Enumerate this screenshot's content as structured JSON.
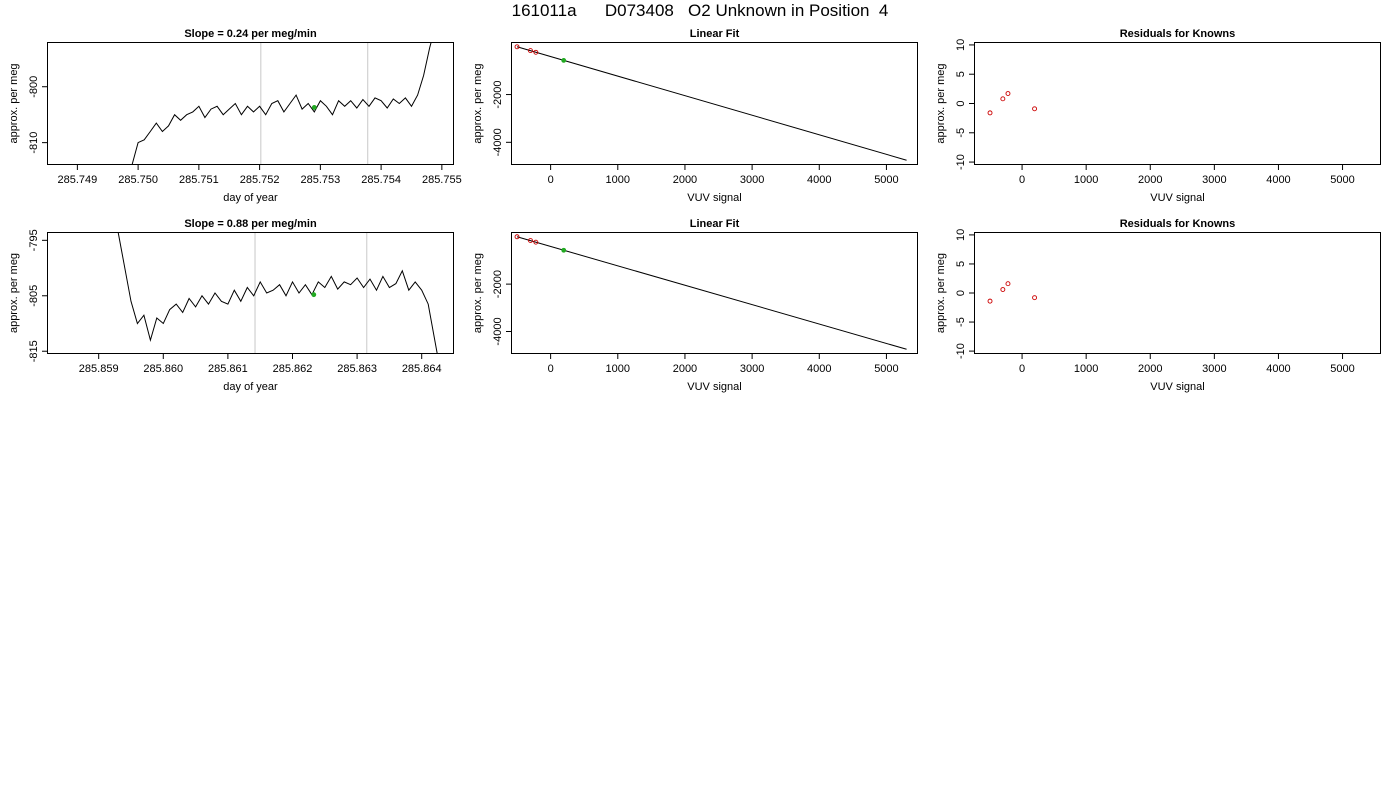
{
  "title": "161011a      D073408   O2 Unknown in Position  4",
  "colors": {
    "line": "#000000",
    "known": "#cc0000",
    "unknown": "#22aa22",
    "marker": "#c8c8c8"
  },
  "chart_data": [
    {
      "type": "line",
      "title": "Slope =  0.24  per meg/min",
      "xlabel": "day of year",
      "ylabel": "approx. per meg",
      "xlim": [
        285.7485,
        285.7552
      ],
      "ylim": [
        -814,
        -792
      ],
      "xticks": [
        285.749,
        285.75,
        285.751,
        285.752,
        285.753,
        285.754,
        285.755
      ],
      "xtick_labels": [
        "285.749",
        "285.750",
        "285.751",
        "285.752",
        "285.753",
        "285.754",
        "285.755"
      ],
      "yticks": [
        -800,
        -810
      ],
      "ytick_labels": [
        "-800",
        "-810"
      ],
      "markers_x": [
        285.75202,
        285.75378
      ],
      "unknown_point": {
        "x": 285.7529,
        "y": -803.7
      },
      "x": [
        285.7499,
        285.75,
        285.7501,
        285.7502,
        285.7503,
        285.7504,
        285.7505,
        285.7506,
        285.7507,
        285.7508,
        285.7509,
        285.751,
        285.7511,
        285.7512,
        285.7513,
        285.7514,
        285.7515,
        285.7516,
        285.7517,
        285.7518,
        285.7519,
        285.752,
        285.7521,
        285.7522,
        285.7523,
        285.7524,
        285.7525,
        285.7526,
        285.7527,
        285.7528,
        285.7529,
        285.753,
        285.7531,
        285.7532,
        285.7533,
        285.7534,
        285.7535,
        285.7536,
        285.7537,
        285.7538,
        285.7539,
        285.754,
        285.7541,
        285.7542,
        285.7543,
        285.7544,
        285.7545,
        285.7546,
        285.7547,
        285.7548,
        285.75485
      ],
      "y": [
        -814,
        -810,
        -809.5,
        -808,
        -806.5,
        -808,
        -807,
        -805,
        -806,
        -805,
        -804.5,
        -803.5,
        -805.5,
        -804,
        -803.5,
        -805,
        -804,
        -803,
        -805,
        -803.5,
        -804.5,
        -803.5,
        -805,
        -803,
        -802.5,
        -804.5,
        -803,
        -801.5,
        -804,
        -803,
        -804.5,
        -802.5,
        -803.5,
        -805,
        -802.5,
        -803.5,
        -802.5,
        -803.8,
        -802.3,
        -803.5,
        -802,
        -802.5,
        -803.8,
        -802.2,
        -803,
        -802,
        -803.5,
        -801.5,
        -798,
        -793,
        -791
      ]
    },
    {
      "type": "scatter",
      "title": "Linear Fit",
      "xlabel": "VUV signal",
      "ylabel": "approx. per meg",
      "xlim": [
        -590,
        5470
      ],
      "ylim": [
        -4950,
        200
      ],
      "xticks": [
        0,
        1000,
        2000,
        3000,
        4000,
        5000
      ],
      "xtick_labels": [
        "0",
        "1000",
        "2000",
        "3000",
        "4000",
        "5000"
      ],
      "yticks": [
        -2000,
        -4000
      ],
      "ytick_labels": [
        "-2000",
        "-4000"
      ],
      "fit_line": {
        "x": [
          -500,
          5300
        ],
        "y": [
          0,
          -4750
        ]
      },
      "known_points": [
        {
          "x": -500,
          "y": 0
        },
        {
          "x": -300,
          "y": -160
        },
        {
          "x": -220,
          "y": -230
        }
      ],
      "unknown_point": {
        "x": 195,
        "y": -570
      }
    },
    {
      "type": "scatter",
      "title": "Residuals for Knowns",
      "xlabel": "VUV signal",
      "ylabel": "approx. per meg",
      "xlim": [
        -750,
        5600
      ],
      "ylim": [
        -10.5,
        10.5
      ],
      "xticks": [
        0,
        1000,
        2000,
        3000,
        4000,
        5000
      ],
      "xtick_labels": [
        "0",
        "1000",
        "2000",
        "3000",
        "4000",
        "5000"
      ],
      "yticks": [
        10,
        5,
        0,
        -5,
        -10
      ],
      "ytick_labels": [
        "10",
        "5",
        "0",
        "-5",
        "-10"
      ],
      "points": [
        {
          "x": -500,
          "y": -1.6
        },
        {
          "x": -300,
          "y": 0.8
        },
        {
          "x": -220,
          "y": 1.7
        },
        {
          "x": 195,
          "y": -0.9
        }
      ]
    },
    {
      "type": "line",
      "title": "Slope =  0.88  per meg/min",
      "xlabel": "day of year",
      "ylabel": "approx. per meg",
      "xlim": [
        285.8582,
        285.8645
      ],
      "ylim": [
        -815.5,
        -793.5
      ],
      "xticks": [
        285.859,
        285.86,
        285.861,
        285.862,
        285.863,
        285.864
      ],
      "xtick_labels": [
        "285.859",
        "285.860",
        "285.861",
        "285.862",
        "285.863",
        "285.864"
      ],
      "yticks": [
        -795,
        -805,
        -815
      ],
      "ytick_labels": [
        "-795",
        "-805",
        "-815"
      ],
      "markers_x": [
        285.86142,
        285.86315
      ],
      "unknown_point": {
        "x": 285.86233,
        "y": -804.8
      },
      "x": [
        285.8593,
        285.8595,
        285.8596,
        285.8597,
        285.8598,
        285.8599,
        285.86,
        285.8601,
        285.8602,
        285.8603,
        285.8604,
        285.8605,
        285.8606,
        285.8607,
        285.8608,
        285.8609,
        285.861,
        285.8611,
        285.8612,
        285.8613,
        285.8614,
        285.8615,
        285.8616,
        285.8617,
        285.8618,
        285.8619,
        285.862,
        285.8621,
        285.8622,
        285.8623,
        285.8624,
        285.8625,
        285.8626,
        285.8627,
        285.8628,
        285.8629,
        285.863,
        285.8631,
        285.8632,
        285.8633,
        285.8634,
        285.8635,
        285.8636,
        285.8637,
        285.8638,
        285.8639,
        285.864,
        285.8641,
        285.86425
      ],
      "y": [
        -793.5,
        -806,
        -810,
        -808.5,
        -813,
        -809,
        -810,
        -807.5,
        -806.5,
        -808,
        -805.5,
        -807,
        -805,
        -806.5,
        -804.5,
        -806,
        -806.5,
        -804,
        -806,
        -803.5,
        -805,
        -802.5,
        -804.5,
        -804,
        -803,
        -805,
        -802.5,
        -804.5,
        -803,
        -804.8,
        -802.5,
        -803.5,
        -801.5,
        -803.8,
        -802.5,
        -803,
        -801.8,
        -803.5,
        -802,
        -804,
        -801.5,
        -803.5,
        -802.8,
        -800.5,
        -804,
        -802.5,
        -804,
        -806.5,
        -816
      ]
    },
    {
      "type": "scatter",
      "title": "Linear Fit",
      "xlabel": "VUV signal",
      "ylabel": "approx. per meg",
      "xlim": [
        -590,
        5470
      ],
      "ylim": [
        -4950,
        200
      ],
      "xticks": [
        0,
        1000,
        2000,
        3000,
        4000,
        5000
      ],
      "xtick_labels": [
        "0",
        "1000",
        "2000",
        "3000",
        "4000",
        "5000"
      ],
      "yticks": [
        -2000,
        -4000
      ],
      "ytick_labels": [
        "-2000",
        "-4000"
      ],
      "fit_line": {
        "x": [
          -500,
          5300
        ],
        "y": [
          0,
          -4750
        ]
      },
      "known_points": [
        {
          "x": -500,
          "y": 0
        },
        {
          "x": -300,
          "y": -160
        },
        {
          "x": -220,
          "y": -230
        }
      ],
      "unknown_point": {
        "x": 195,
        "y": -570
      }
    },
    {
      "type": "scatter",
      "title": "Residuals for Knowns",
      "xlabel": "VUV signal",
      "ylabel": "approx. per meg",
      "xlim": [
        -750,
        5600
      ],
      "ylim": [
        -10.5,
        10.5
      ],
      "xticks": [
        0,
        1000,
        2000,
        3000,
        4000,
        5000
      ],
      "xtick_labels": [
        "0",
        "1000",
        "2000",
        "3000",
        "4000",
        "5000"
      ],
      "yticks": [
        10,
        5,
        0,
        -5,
        -10
      ],
      "ytick_labels": [
        "10",
        "5",
        "0",
        "-5",
        "-10"
      ],
      "points": [
        {
          "x": -500,
          "y": -1.4
        },
        {
          "x": -300,
          "y": 0.6
        },
        {
          "x": -220,
          "y": 1.6
        },
        {
          "x": 195,
          "y": -0.8
        }
      ]
    }
  ]
}
